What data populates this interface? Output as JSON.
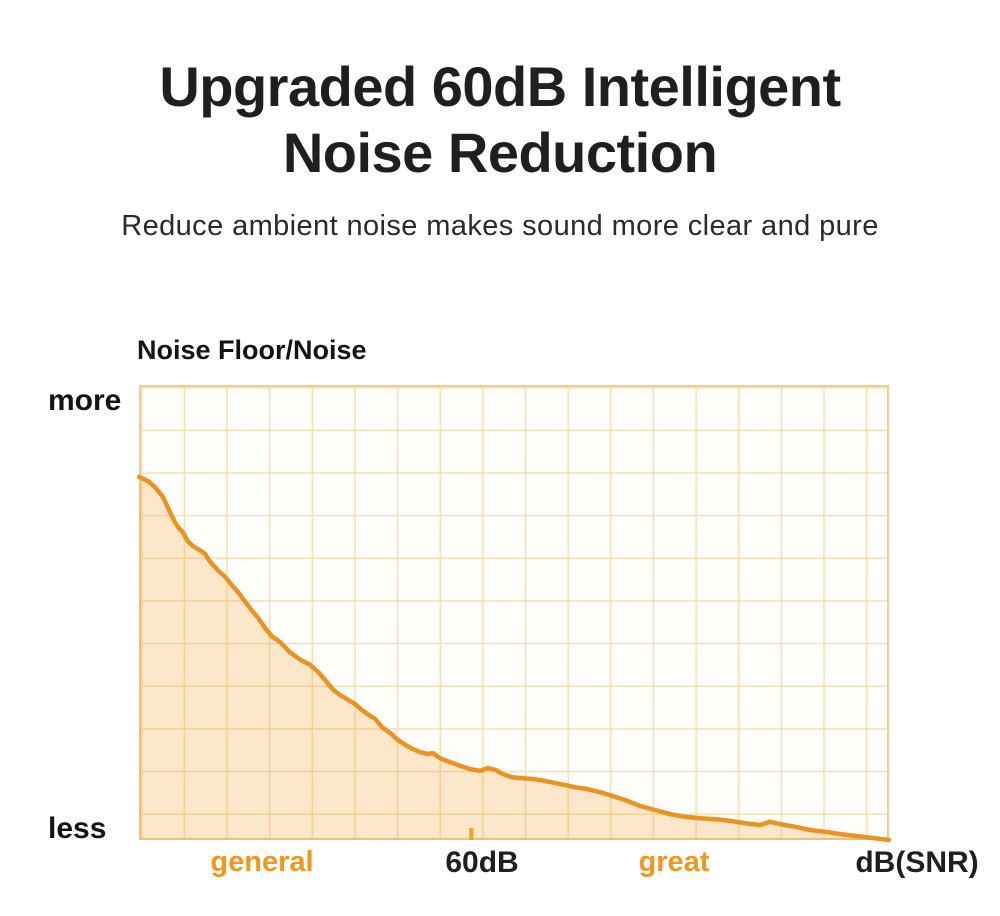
{
  "header": {
    "title_line1": "Upgraded 60dB Intelligent",
    "title_line2": "Noise Reduction",
    "subtitle": "Reduce ambient noise makes sound more clear and pure"
  },
  "chart": {
    "axis_title": "Noise Floor/Noise",
    "y_axis": {
      "top": "more",
      "bottom": "less"
    },
    "x_axis": {
      "general": "general",
      "threshold": "60dB",
      "great": "great",
      "unit": "dB(SNR)"
    }
  },
  "colors": {
    "accent_orange": "#f2961e",
    "curve_orange": "#eb9223",
    "tick_orange": "#f2a31d",
    "area_fill": "rgba(242,150,30,0.22)",
    "grid_orange": "#f8dfb3",
    "text_dark": "#1f1f1f"
  },
  "chart_data": {
    "type": "area",
    "title": "Noise Floor/Noise",
    "xlabel": "dB(SNR)",
    "ylabel": "Noise Floor/Noise",
    "x_tick_labels": [
      "general",
      "60dB",
      "great"
    ],
    "y_tick_labels": [
      "more",
      "less"
    ],
    "grid": true,
    "legend": false,
    "threshold_tick_x_fraction": 0.443,
    "series": [
      {
        "name": "Noise Floor",
        "points_xy_fraction": [
          [
            0,
            0.202
          ],
          [
            0.012,
            0.211
          ],
          [
            0.021,
            0.224
          ],
          [
            0.032,
            0.246
          ],
          [
            0.041,
            0.279
          ],
          [
            0.047,
            0.299
          ],
          [
            0.052,
            0.312
          ],
          [
            0.059,
            0.325
          ],
          [
            0.065,
            0.343
          ],
          [
            0.072,
            0.354
          ],
          [
            0.081,
            0.363
          ],
          [
            0.088,
            0.371
          ],
          [
            0.095,
            0.389
          ],
          [
            0.105,
            0.407
          ],
          [
            0.115,
            0.422
          ],
          [
            0.124,
            0.44
          ],
          [
            0.132,
            0.455
          ],
          [
            0.141,
            0.475
          ],
          [
            0.151,
            0.497
          ],
          [
            0.159,
            0.512
          ],
          [
            0.168,
            0.534
          ],
          [
            0.177,
            0.552
          ],
          [
            0.188,
            0.565
          ],
          [
            0.201,
            0.587
          ],
          [
            0.215,
            0.604
          ],
          [
            0.228,
            0.615
          ],
          [
            0.239,
            0.631
          ],
          [
            0.248,
            0.648
          ],
          [
            0.259,
            0.67
          ],
          [
            0.268,
            0.681
          ],
          [
            0.279,
            0.692
          ],
          [
            0.288,
            0.701
          ],
          [
            0.297,
            0.714
          ],
          [
            0.308,
            0.727
          ],
          [
            0.315,
            0.734
          ],
          [
            0.324,
            0.752
          ],
          [
            0.335,
            0.765
          ],
          [
            0.345,
            0.78
          ],
          [
            0.355,
            0.791
          ],
          [
            0.365,
            0.8
          ],
          [
            0.375,
            0.807
          ],
          [
            0.385,
            0.811
          ],
          [
            0.392,
            0.809
          ],
          [
            0.401,
            0.82
          ],
          [
            0.415,
            0.829
          ],
          [
            0.428,
            0.837
          ],
          [
            0.441,
            0.844
          ],
          [
            0.455,
            0.848
          ],
          [
            0.465,
            0.842
          ],
          [
            0.475,
            0.846
          ],
          [
            0.485,
            0.855
          ],
          [
            0.497,
            0.862
          ],
          [
            0.511,
            0.864
          ],
          [
            0.525,
            0.866
          ],
          [
            0.541,
            0.87
          ],
          [
            0.555,
            0.875
          ],
          [
            0.568,
            0.879
          ],
          [
            0.581,
            0.884
          ],
          [
            0.597,
            0.888
          ],
          [
            0.615,
            0.895
          ],
          [
            0.631,
            0.903
          ],
          [
            0.648,
            0.912
          ],
          [
            0.668,
            0.925
          ],
          [
            0.688,
            0.934
          ],
          [
            0.708,
            0.943
          ],
          [
            0.728,
            0.949
          ],
          [
            0.748,
            0.952
          ],
          [
            0.768,
            0.954
          ],
          [
            0.788,
            0.958
          ],
          [
            0.808,
            0.963
          ],
          [
            0.828,
            0.967
          ],
          [
            0.841,
            0.96
          ],
          [
            0.855,
            0.965
          ],
          [
            0.875,
            0.971
          ],
          [
            0.895,
            0.978
          ],
          [
            0.915,
            0.982
          ],
          [
            0.935,
            0.987
          ],
          [
            0.955,
            0.991
          ],
          [
            1,
            1
          ]
        ]
      }
    ]
  }
}
